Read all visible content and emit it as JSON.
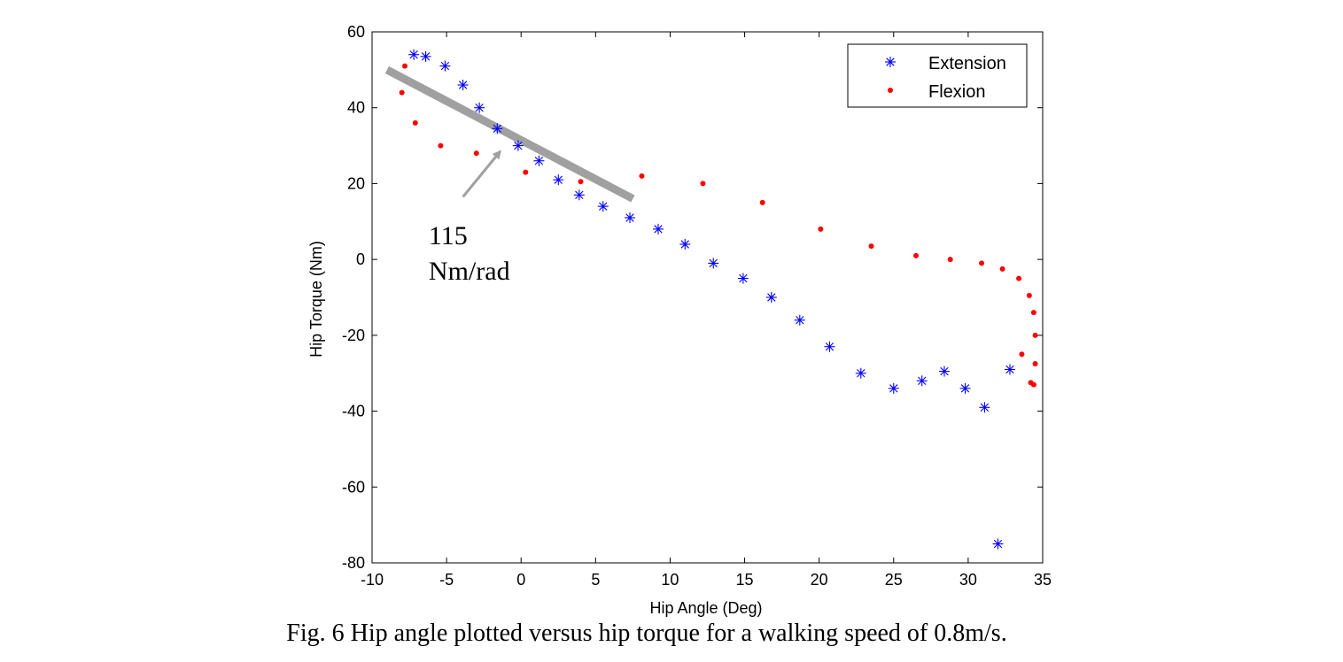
{
  "chart_data": {
    "type": "scatter",
    "xlabel": "Hip Angle (Deg)",
    "ylabel": "Hip Torque (Nm)",
    "xlim": [
      -10,
      35
    ],
    "ylim": [
      -80,
      60
    ],
    "xticks": [
      -10,
      -5,
      0,
      5,
      10,
      15,
      20,
      25,
      30,
      35
    ],
    "yticks": [
      -80,
      -60,
      -40,
      -20,
      0,
      20,
      40,
      60
    ],
    "legend_position": "top-right",
    "series": [
      {
        "name": "Extension",
        "marker": "asterisk",
        "color": "#0000ff",
        "points": [
          [
            -7.2,
            54
          ],
          [
            -6.4,
            53.5
          ],
          [
            -5.1,
            51
          ],
          [
            -3.9,
            46
          ],
          [
            -2.8,
            40
          ],
          [
            -1.6,
            34.5
          ],
          [
            -0.2,
            30
          ],
          [
            1.2,
            26
          ],
          [
            2.5,
            21
          ],
          [
            3.9,
            17
          ],
          [
            5.5,
            14
          ],
          [
            7.3,
            11
          ],
          [
            9.2,
            8
          ],
          [
            11.0,
            4
          ],
          [
            12.9,
            -1
          ],
          [
            14.9,
            -5
          ],
          [
            16.8,
            -10
          ],
          [
            18.7,
            -16
          ],
          [
            20.7,
            -23
          ],
          [
            22.8,
            -30
          ],
          [
            25.0,
            -34
          ],
          [
            26.9,
            -32
          ],
          [
            28.4,
            -29.5
          ],
          [
            29.8,
            -34
          ],
          [
            31.1,
            -39
          ],
          [
            32.8,
            -29
          ],
          [
            32.0,
            -75
          ]
        ]
      },
      {
        "name": "Flexion",
        "marker": "dot",
        "color": "#ff0000",
        "points": [
          [
            -7.8,
            51
          ],
          [
            -8.0,
            44
          ],
          [
            -7.1,
            36
          ],
          [
            -5.4,
            30
          ],
          [
            -3.0,
            28
          ],
          [
            0.3,
            23
          ],
          [
            4.0,
            20.5
          ],
          [
            8.1,
            22
          ],
          [
            12.2,
            20
          ],
          [
            16.2,
            15
          ],
          [
            20.1,
            8
          ],
          [
            23.5,
            3.5
          ],
          [
            26.5,
            1
          ],
          [
            28.8,
            0
          ],
          [
            30.9,
            -1
          ],
          [
            32.3,
            -2.5
          ],
          [
            33.4,
            -5
          ],
          [
            34.1,
            -9.5
          ],
          [
            34.4,
            -14
          ],
          [
            34.5,
            -20
          ],
          [
            34.5,
            -27.5
          ],
          [
            33.6,
            -25
          ],
          [
            34.2,
            -32.5
          ],
          [
            34.4,
            -33
          ]
        ]
      }
    ],
    "fit_line": {
      "from": [
        -9,
        50
      ],
      "to": [
        7.5,
        16
      ],
      "color": "#a0a0a0"
    },
    "annotation": {
      "line1": "115",
      "line2": "Nm/rad",
      "arrow_from": [
        -3.9,
        16.5
      ],
      "arrow_to": [
        -1.4,
        28.5
      ],
      "text_anchor": [
        -6.2,
        4
      ]
    }
  },
  "caption": "Fig. 6 Hip angle plotted versus hip torque for a walking speed of 0.8m/s."
}
